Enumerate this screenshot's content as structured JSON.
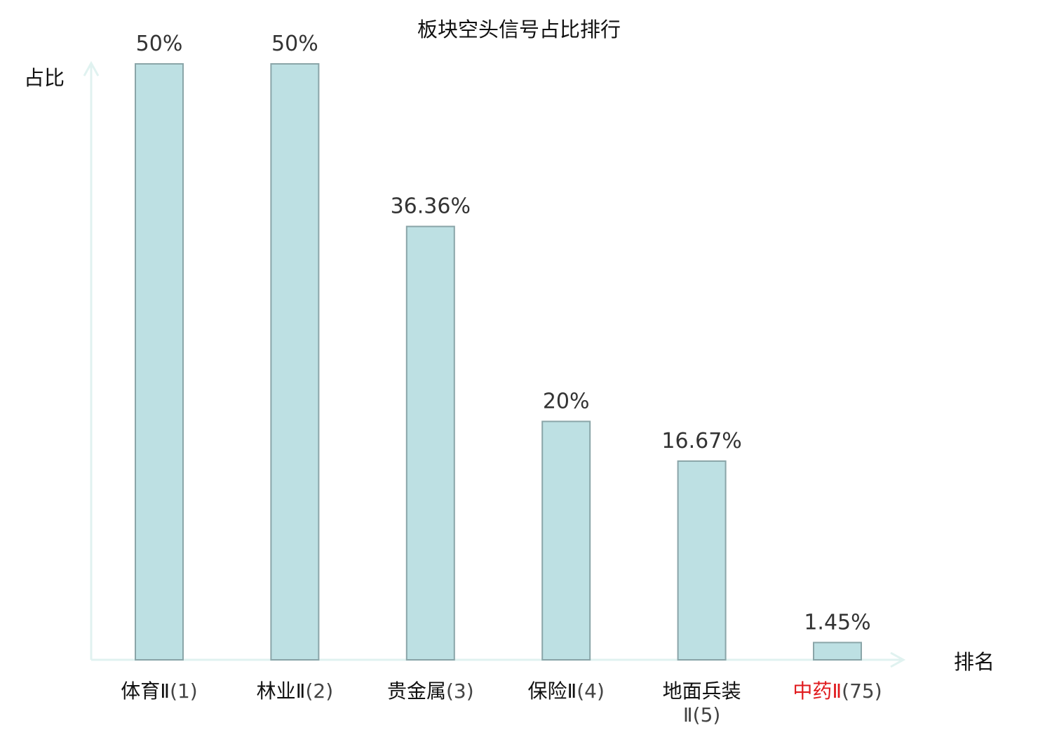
{
  "chart_data": {
    "type": "bar",
    "title": "板块空头信号占比排行",
    "ylabel": "占比",
    "xlabel": "排名",
    "ylim": [
      0,
      50
    ],
    "grid": false,
    "legend": "none",
    "categories": [
      {
        "name": "体育Ⅱ",
        "rank": "(1)",
        "highlight": false
      },
      {
        "name": "林业Ⅱ",
        "rank": "(2)",
        "highlight": false
      },
      {
        "name": "贵金属",
        "rank": "(3)",
        "highlight": false
      },
      {
        "name": "保险Ⅱ",
        "rank": "(4)",
        "highlight": false
      },
      {
        "name": "地面兵装",
        "name2": "Ⅱ",
        "rank": "(5)",
        "highlight": false
      },
      {
        "name": "中药Ⅱ",
        "rank": "(75)",
        "highlight": true
      }
    ],
    "values": [
      50,
      50,
      36.36,
      20,
      16.67,
      1.45
    ],
    "value_labels": [
      "50%",
      "50%",
      "36.36%",
      "20%",
      "16.67%",
      "1.45%"
    ],
    "colors": {
      "bar_fill": "#bde0e3",
      "bar_stroke": "#8aa5a8",
      "axis": "#e0f2f0",
      "highlight_text": "#e0191c",
      "text": "#111111"
    }
  }
}
